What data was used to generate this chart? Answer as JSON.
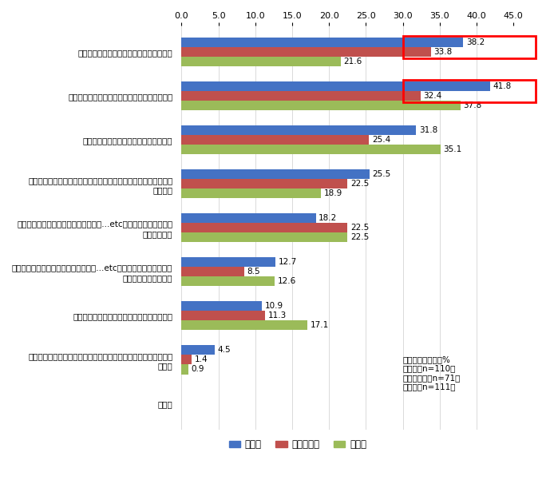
{
  "categories": [
    "とにかくスピード。全てをクイックに推進",
    "しっかり計画を立て、どっしり腰を据えて推進",
    "やってみて考えるトライ＆エラーで推進",
    "仮説思考で考えた後に実行。仮説を立てた上で、実行・検証しな\nがら推進",
    "その業界（例：金融、教育、不動産、...etc）の常識や商習慣に囚\nわれずに推進",
    "その業界（例：金融、教育、不動産、...etc）の常識や商習慣はしっ\nかり踏まえながら推進",
    "社内外の様々な人・組織と協力しながら推進",
    "周囲は気にせず、とにかく自分達がやりたい事・作りたい事だけ\nを推進",
    "その他"
  ],
  "daiki": [
    38.2,
    41.8,
    31.8,
    25.5,
    18.2,
    12.7,
    10.9,
    4.5,
    0.0
  ],
  "venture": [
    33.8,
    32.4,
    25.4,
    22.5,
    22.5,
    8.5,
    11.3,
    1.4,
    0.0
  ],
  "sonota": [
    21.6,
    37.8,
    35.1,
    18.9,
    22.5,
    12.6,
    17.1,
    0.9,
    0.0
  ],
  "color_daiki": "#4472C4",
  "color_venture": "#C0504D",
  "color_sonota": "#9BBB59",
  "xlim": [
    0,
    45
  ],
  "xticks": [
    0.0,
    5.0,
    10.0,
    15.0,
    20.0,
    25.0,
    30.0,
    35.0,
    40.0,
    45.0
  ],
  "annotation_text": "複数回答、単位：%\n大企業（n=110）\nベンチャー（n=71）\nその他（n=111）",
  "legend_daiki": "大企業",
  "legend_venture": "ベンチャー",
  "legend_sonota": "その他",
  "bar_height": 0.22,
  "highlight_rows": [
    0,
    1
  ]
}
